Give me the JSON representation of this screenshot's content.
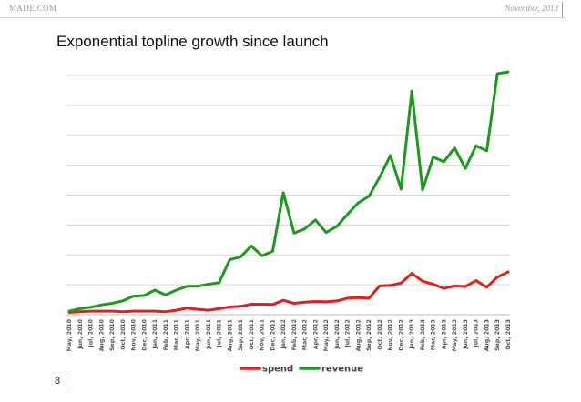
{
  "header": {
    "brand": "MADE.COM",
    "date": "November, 2013"
  },
  "title": "Exponential topline growth since launch",
  "page_number": "8",
  "colors": {
    "spend": "#e02020",
    "revenue": "#1d9a1d",
    "grid": "#d6d6d6"
  },
  "chart_data": {
    "type": "line",
    "title": "Exponential topline growth since launch",
    "xlabel": "",
    "ylabel": "",
    "ylim": [
      0,
      8
    ],
    "grid": true,
    "legend_position": "bottom-center",
    "categories": [
      "May, 2010",
      "Jun, 2010",
      "Jul, 2010",
      "Aug, 2010",
      "Sep, 2010",
      "Oct, 2010",
      "Nov, 2010",
      "Dec, 2010",
      "Jan, 2011",
      "Feb, 2011",
      "Mar, 2011",
      "Apr, 2011",
      "May, 2011",
      "Jun, 2011",
      "Jul, 2011",
      "Aug, 2011",
      "Sep, 2011",
      "Oct, 2011",
      "Nov, 2011",
      "Dec, 2011",
      "Jan, 2012",
      "Feb, 2012",
      "Mar, 2012",
      "Apr, 2012",
      "May, 2012",
      "Jun, 2012",
      "Jul, 2012",
      "Aug, 2012",
      "Sep, 2012",
      "Oct, 2012",
      "Nov, 2012",
      "Dec, 2012",
      "Jan, 2013",
      "Feb, 2013",
      "Mar, 2013",
      "Apr, 2013",
      "May, 2013",
      "Jun, 2013",
      "Jul, 2013",
      "Aug, 2013",
      "Sep, 2013",
      "Oct, 2013"
    ],
    "series": [
      {
        "name": "spend",
        "color": "#e02020",
        "values": [
          0.08,
          0.1,
          0.12,
          0.12,
          0.12,
          0.1,
          0.12,
          0.12,
          0.12,
          0.1,
          0.15,
          0.22,
          0.18,
          0.15,
          0.2,
          0.26,
          0.28,
          0.35,
          0.35,
          0.34,
          0.48,
          0.38,
          0.42,
          0.44,
          0.43,
          0.46,
          0.55,
          0.57,
          0.55,
          0.96,
          0.98,
          1.06,
          1.38,
          1.12,
          1.02,
          0.88,
          0.96,
          0.94,
          1.14,
          0.92,
          1.26,
          1.43
        ]
      },
      {
        "name": "revenue",
        "color": "#1d9a1d",
        "values": [
          0.12,
          0.2,
          0.25,
          0.33,
          0.38,
          0.46,
          0.62,
          0.64,
          0.82,
          0.66,
          0.82,
          0.95,
          0.95,
          1.02,
          1.07,
          1.84,
          1.93,
          2.3,
          1.97,
          2.12,
          4.08,
          2.73,
          2.87,
          3.17,
          2.75,
          2.95,
          3.36,
          3.74,
          3.96,
          4.6,
          5.32,
          4.2,
          7.48,
          4.17,
          5.27,
          5.12,
          5.58,
          4.89,
          5.65,
          5.48,
          8.06,
          8.12
        ]
      }
    ]
  }
}
